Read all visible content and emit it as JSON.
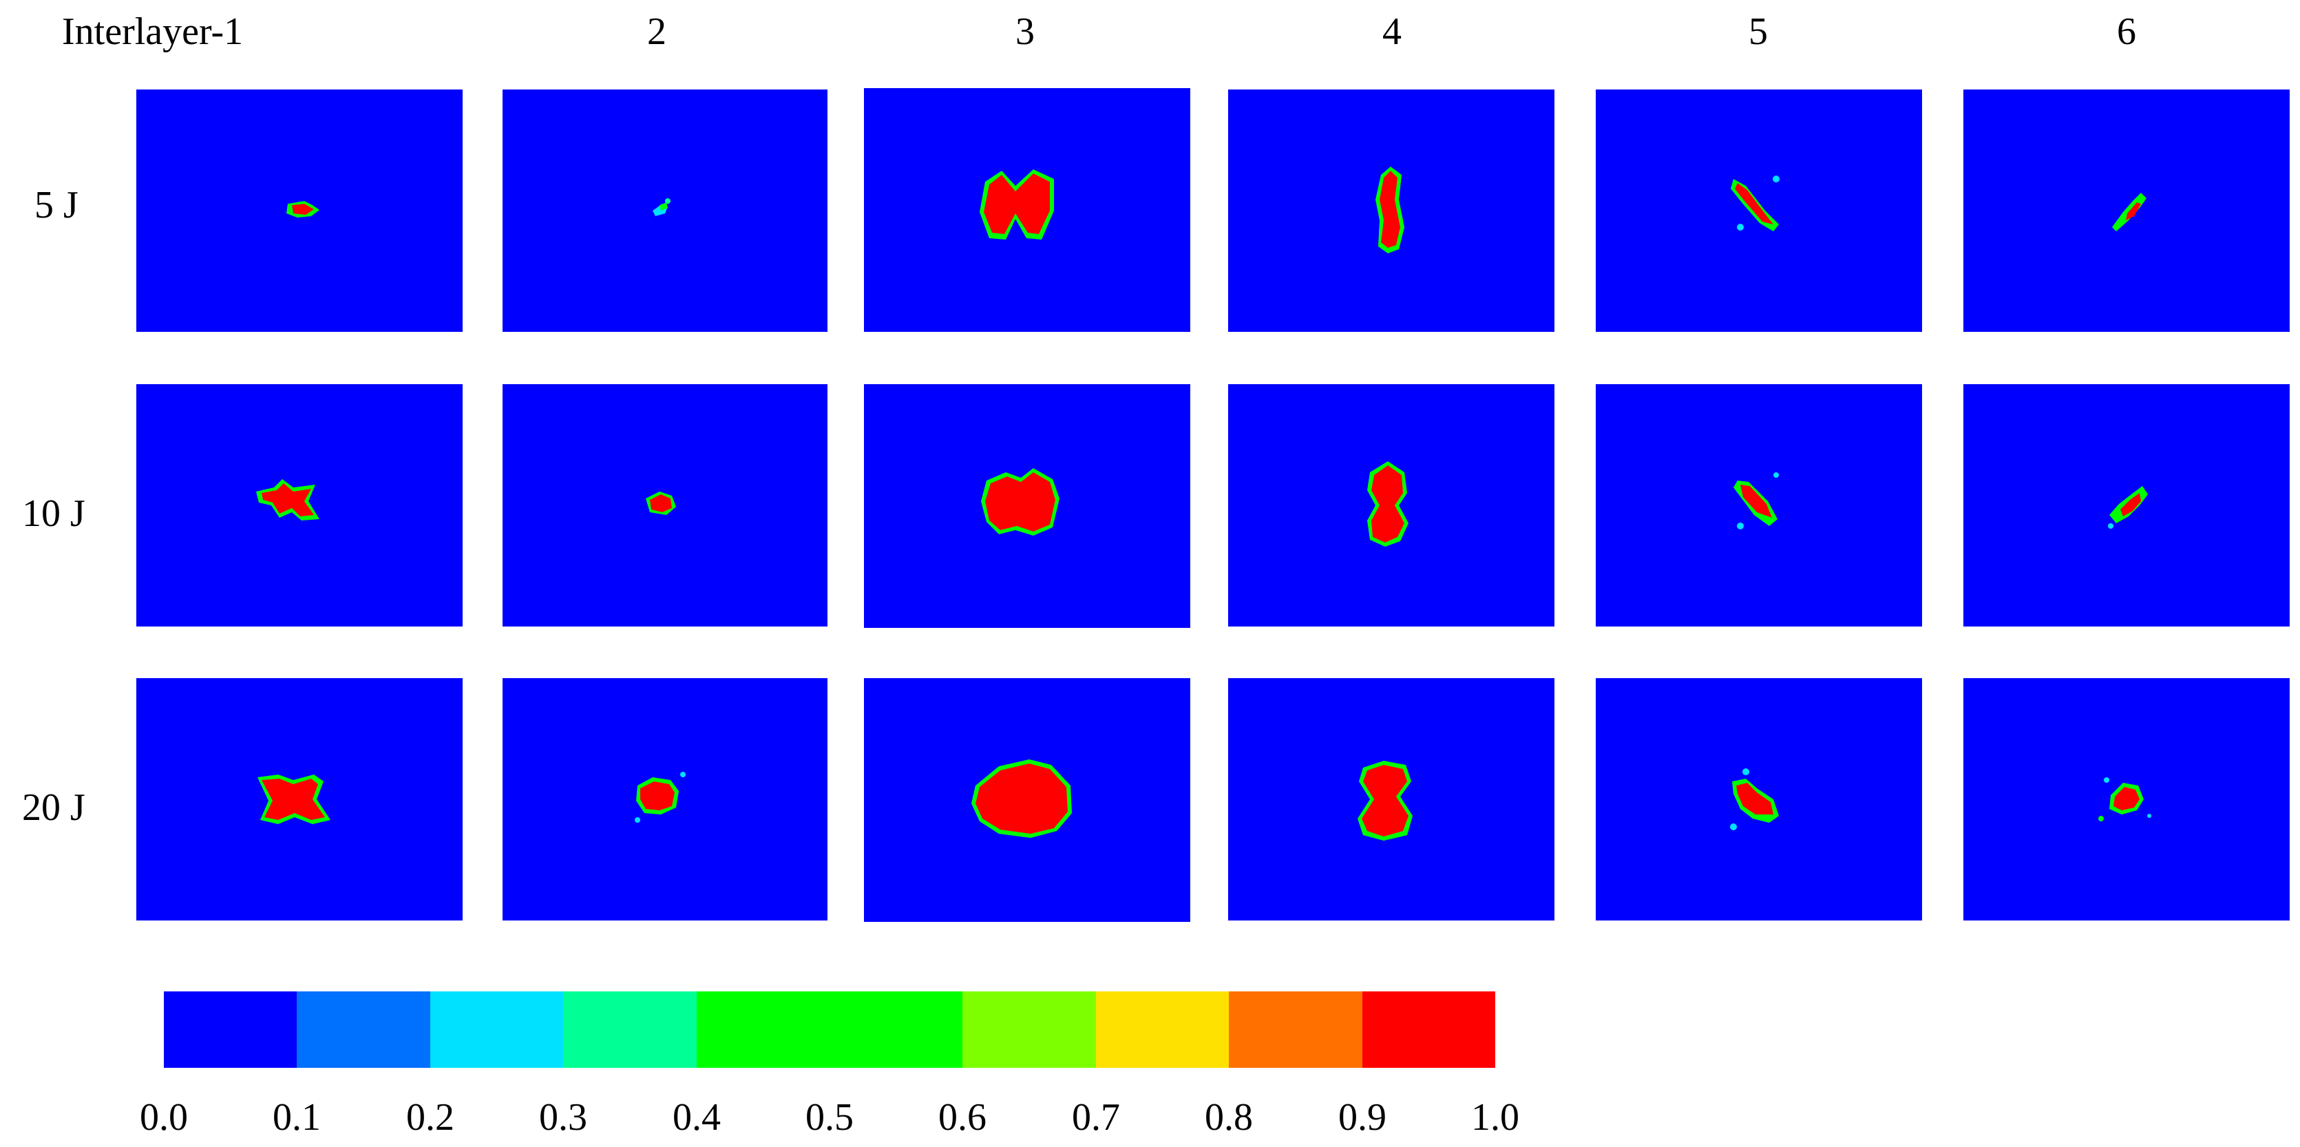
{
  "columns": [
    "Interlayer-1",
    "2",
    "3",
    "4",
    "5",
    "6"
  ],
  "rows": [
    "5 J",
    "10 J",
    "20 J"
  ],
  "colorbar": {
    "ticks": [
      "0.0",
      "0.1",
      "0.2",
      "0.3",
      "0.4",
      "0.5",
      "0.6",
      "0.7",
      "0.8",
      "0.9",
      "1.0"
    ],
    "bins": [
      {
        "from": 0.0,
        "to": 0.1,
        "color": "#0000ff"
      },
      {
        "from": 0.1,
        "to": 0.2,
        "color": "#0070ff"
      },
      {
        "from": 0.2,
        "to": 0.3,
        "color": "#00e1ff"
      },
      {
        "from": 0.3,
        "to": 0.4,
        "color": "#00ff94"
      },
      {
        "from": 0.4,
        "to": 0.6,
        "color": "#00ff00"
      },
      {
        "from": 0.6,
        "to": 0.7,
        "color": "#7dff00"
      },
      {
        "from": 0.7,
        "to": 0.8,
        "color": "#ffe100"
      },
      {
        "from": 0.8,
        "to": 0.9,
        "color": "#ff7000"
      },
      {
        "from": 0.9,
        "to": 1.0,
        "color": "#ff0000"
      }
    ]
  },
  "colors": {
    "background": "#0000ff",
    "damage": "#ff0000",
    "edge_outer": "#00e1ff",
    "edge_inner": "#00ff00"
  }
}
